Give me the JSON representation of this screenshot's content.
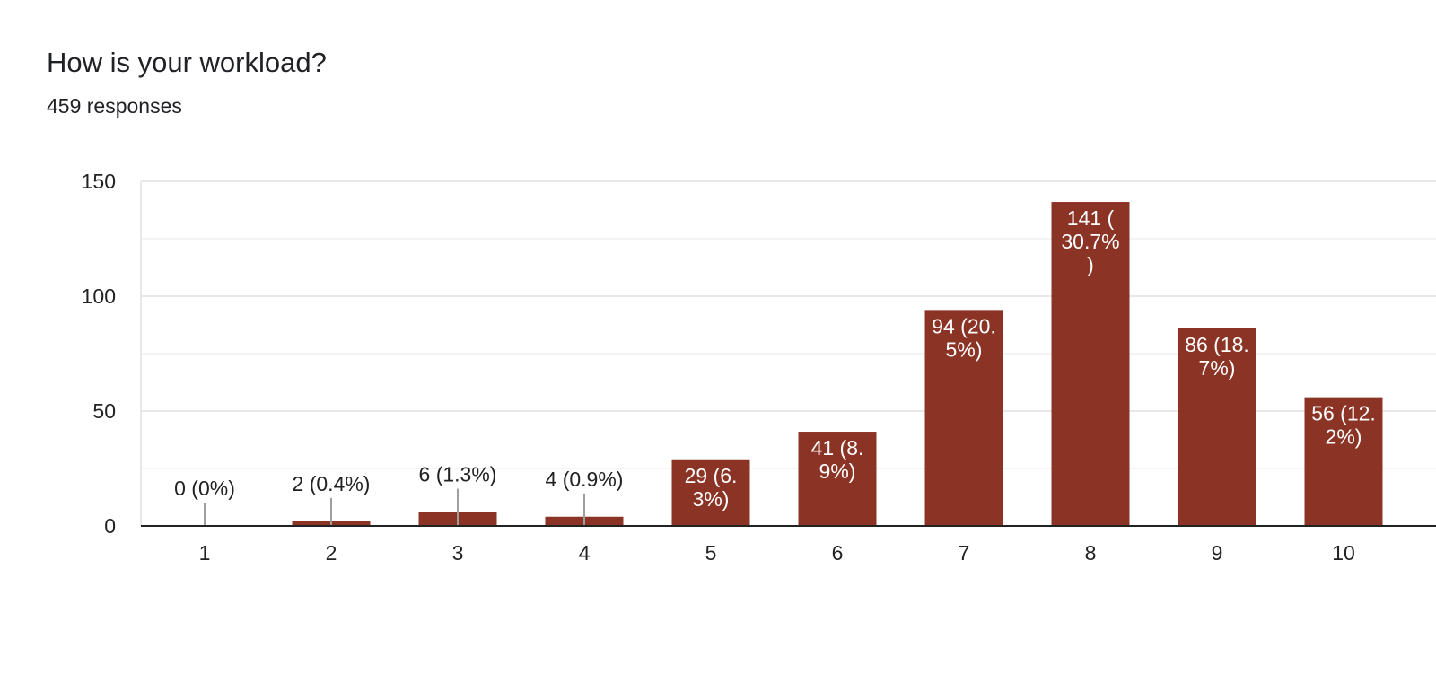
{
  "header": {
    "title": "How is your workload?",
    "responses": "459 responses"
  },
  "colors": {
    "bar": "#8b3426",
    "grid": "#e8e8e8",
    "axis": "#222222",
    "leader": "#9e9e9e"
  },
  "chart_data": {
    "type": "bar",
    "title": "How is your workload?",
    "subtitle": "459 responses",
    "categories": [
      "1",
      "2",
      "3",
      "4",
      "5",
      "6",
      "7",
      "8",
      "9",
      "10"
    ],
    "values": [
      0,
      2,
      6,
      4,
      29,
      41,
      94,
      141,
      86,
      56
    ],
    "data_labels": [
      [
        "0 (0%)"
      ],
      [
        "2 (0.4%)"
      ],
      [
        "6 (1.3%)"
      ],
      [
        "4 (0.9%)"
      ],
      [
        "29 (6.",
        "3%)"
      ],
      [
        "41 (8.",
        "9%)"
      ],
      [
        "94 (20.",
        "5%)"
      ],
      [
        "141 (",
        "30.7%",
        ")"
      ],
      [
        "86 (18.",
        "7%)"
      ],
      [
        "56 (12.",
        "2%)"
      ]
    ],
    "yticks": [
      "0",
      "50",
      "100",
      "150"
    ],
    "ylim": [
      0,
      150
    ],
    "grid": true,
    "xlabel": "",
    "ylabel": ""
  }
}
